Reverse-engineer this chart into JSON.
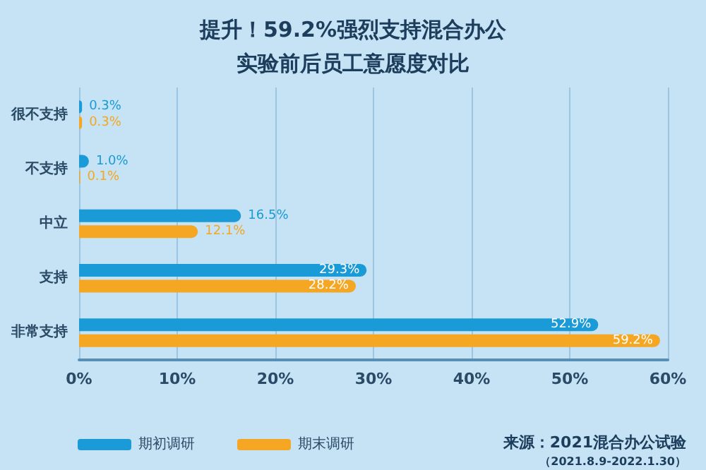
{
  "chart_data": {
    "type": "bar",
    "orientation": "horizontal",
    "title": "提升！59.2%强烈支持混合办公",
    "subtitle": "实验前后员工意愿度对比",
    "categories": [
      "很不支持",
      "不支持",
      "中立",
      "支持",
      "非常支持"
    ],
    "series": [
      {
        "name": "期初调研",
        "color": "#1a9ad6",
        "values": [
          0.3,
          1.0,
          16.5,
          29.3,
          52.9
        ],
        "value_labels": [
          "0.3%",
          "1.0%",
          "16.5%",
          "29.3%",
          "52.9%"
        ]
      },
      {
        "name": "期末调研",
        "color": "#f5a623",
        "values": [
          0.3,
          0.1,
          12.1,
          28.2,
          59.2
        ],
        "value_labels": [
          "0.3%",
          "0.1%",
          "12.1%",
          "28.2%",
          "59.2%"
        ]
      }
    ],
    "xlim": [
      0,
      60
    ],
    "xticks": [
      {
        "value": 0,
        "label": "0%"
      },
      {
        "value": 10,
        "label": "10%"
      },
      {
        "value": 20,
        "label": "20%"
      },
      {
        "value": 30,
        "label": "30%"
      },
      {
        "value": 40,
        "label": "40%"
      },
      {
        "value": 50,
        "label": "50%"
      },
      {
        "value": 60,
        "label": "60%"
      }
    ],
    "grid": "x",
    "legend": "bottom left",
    "annotations": [
      "来源：2021混合办公试验",
      "（2021.8.9-2022.1.30）"
    ]
  }
}
